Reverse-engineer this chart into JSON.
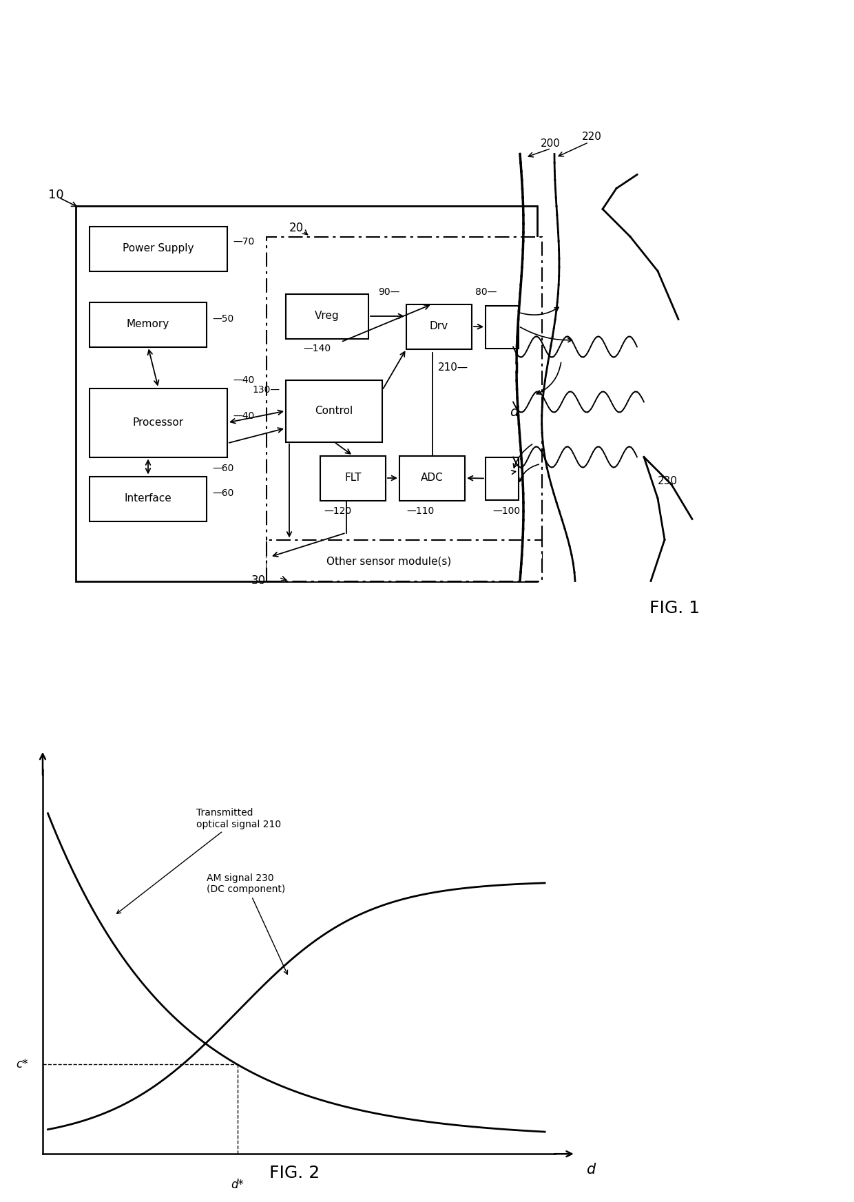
{
  "fig_width": 12.4,
  "fig_height": 17.45,
  "bg_color": "#ffffff",
  "fig1_title": "FIG. 1",
  "fig2_title": "FIG. 2",
  "fig2": {
    "xlabel": "d",
    "c_star_label": "c*",
    "d_star_label": "d*",
    "curve1_label": "Transmitted\noptical signal 210",
    "curve2_label": "AM signal 230\n(DC component)"
  }
}
